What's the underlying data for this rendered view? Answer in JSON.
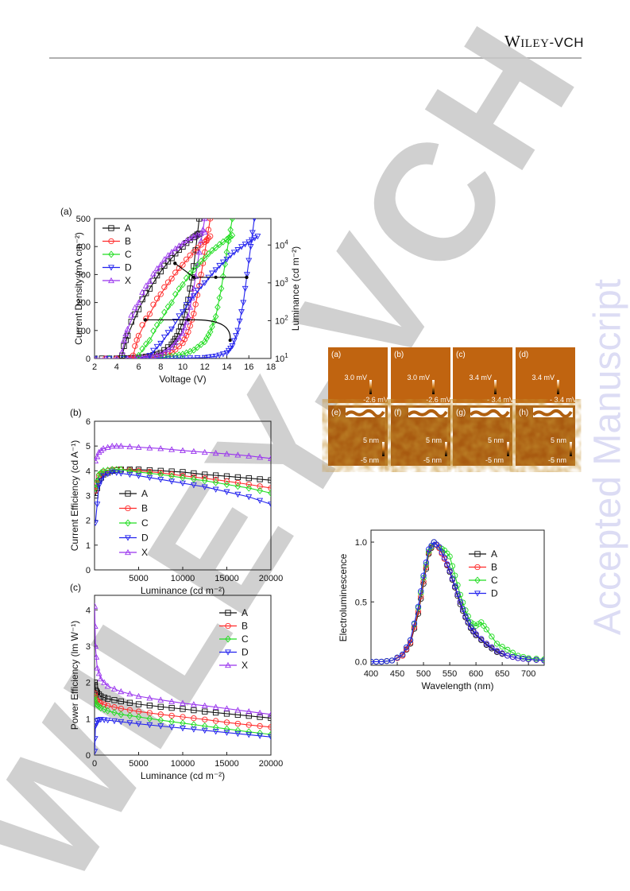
{
  "header": {
    "publisher_main": "Wiley",
    "publisher_sub": "-VCH"
  },
  "watermark": {
    "side_text": "Accepted Manuscript",
    "diagonal_text": "WILEY-VCH"
  },
  "colors": {
    "A": "#111111",
    "B": "#ff2a2a",
    "C": "#22dd22",
    "D": "#2222ee",
    "X": "#9933ee"
  },
  "chart_data": [
    {
      "id": "jvl",
      "type": "line",
      "panel_label": "(a)",
      "xlabel": "Voltage (V)",
      "ylabel": "Current Density (mA cm⁻²)",
      "y2label": "Luminance (cd m⁻²)",
      "xlim": [
        2,
        18
      ],
      "ylim": [
        0,
        500
      ],
      "y2lim": [
        10,
        50000
      ],
      "y2scale": "log",
      "xticks": [
        "2",
        "4",
        "6",
        "8",
        "10",
        "12",
        "14",
        "16",
        "18"
      ],
      "yticks": [
        "0",
        "100",
        "200",
        "300",
        "400",
        "500"
      ],
      "y2ticks": [
        "10",
        "10",
        "10",
        "10"
      ],
      "y2tick_exps": [
        "1",
        "2",
        "3",
        "4"
      ],
      "legend": [
        "A",
        "B",
        "C",
        "D",
        "X"
      ],
      "legend_position": "top-left",
      "series_j": [
        {
          "name": "A",
          "x": [
            2,
            4,
            5,
            6,
            7,
            8,
            9,
            9.5,
            10,
            10.5,
            11,
            11.5
          ],
          "y": [
            0,
            0,
            1,
            3,
            8,
            20,
            50,
            80,
            130,
            210,
            330,
            500
          ]
        },
        {
          "name": "B",
          "x": [
            2,
            5,
            6,
            7,
            8,
            9,
            10,
            10.5,
            11,
            11.5,
            12,
            12.5
          ],
          "y": [
            0,
            0,
            1,
            3,
            8,
            20,
            55,
            95,
            160,
            260,
            380,
            500
          ]
        },
        {
          "name": "C",
          "x": [
            2,
            6,
            7,
            8,
            9,
            10,
            11,
            12,
            12.5,
            13,
            13.5,
            14,
            14.5
          ],
          "y": [
            0,
            0,
            1,
            3,
            7,
            15,
            30,
            60,
            95,
            150,
            250,
            380,
            500
          ]
        },
        {
          "name": "D",
          "x": [
            2,
            6,
            8,
            10,
            12,
            13,
            14,
            14.5,
            15,
            15.5,
            16,
            16.5
          ],
          "y": [
            0,
            0,
            0.5,
            1,
            3,
            8,
            20,
            45,
            100,
            200,
            350,
            500
          ]
        },
        {
          "name": "X",
          "x": [
            2,
            5,
            6,
            7,
            8,
            9,
            10,
            10.5,
            11,
            11.5,
            12
          ],
          "y": [
            0,
            0,
            2,
            6,
            15,
            40,
            90,
            150,
            250,
            380,
            500
          ]
        }
      ],
      "series_l": [
        {
          "name": "A",
          "x": [
            4.5,
            5,
            6,
            7,
            8,
            9,
            10,
            11,
            11.5
          ],
          "y": [
            12,
            40,
            200,
            700,
            2000,
            4500,
            9000,
            16000,
            20000
          ]
        },
        {
          "name": "B",
          "x": [
            5.5,
            6,
            7,
            8,
            9,
            10,
            11,
            12,
            12.5
          ],
          "y": [
            12,
            40,
            150,
            500,
            1300,
            3000,
            6500,
            12000,
            17000
          ]
        },
        {
          "name": "C",
          "x": [
            6,
            7,
            8,
            9,
            10,
            11,
            12,
            13,
            14,
            14.5
          ],
          "y": [
            12,
            30,
            100,
            300,
            900,
            2200,
            4500,
            8500,
            14000,
            18000
          ]
        },
        {
          "name": "D",
          "x": [
            7,
            8,
            9,
            10,
            11,
            12,
            13,
            14,
            15,
            16,
            16.8
          ],
          "y": [
            12,
            25,
            60,
            170,
            450,
            1000,
            2200,
            4200,
            7500,
            12000,
            17000
          ]
        },
        {
          "name": "X",
          "x": [
            4.5,
            5,
            6,
            7,
            8,
            9,
            10,
            11,
            12
          ],
          "y": [
            15,
            60,
            300,
            1100,
            3000,
            6500,
            11000,
            17000,
            22000
          ]
        }
      ]
    },
    {
      "id": "ce",
      "type": "line",
      "panel_label": "(b)",
      "xlabel": "Luminance (cd m⁻²)",
      "ylabel": "Current Efficiency (cd A⁻¹)",
      "xlim": [
        0,
        20000
      ],
      "ylim": [
        0,
        6
      ],
      "xticks": [
        "5000",
        "10000",
        "15000",
        "20000"
      ],
      "yticks": [
        "0",
        "1",
        "2",
        "3",
        "4",
        "5",
        "6"
      ],
      "legend": [
        "A",
        "B",
        "C",
        "D",
        "X"
      ],
      "legend_position": "middle-left",
      "series": [
        {
          "name": "A",
          "x": [
            100,
            500,
            1000,
            2000,
            3000,
            5000,
            7500,
            10000,
            12500,
            15000,
            17500,
            20000
          ],
          "y": [
            3.0,
            3.6,
            3.85,
            4.0,
            4.05,
            4.05,
            4.0,
            3.95,
            3.85,
            3.78,
            3.7,
            3.62
          ]
        },
        {
          "name": "B",
          "x": [
            100,
            500,
            1000,
            2000,
            3000,
            5000,
            7500,
            10000,
            12500,
            15000,
            17500,
            20000
          ],
          "y": [
            3.2,
            3.8,
            3.95,
            4.05,
            4.05,
            4.0,
            3.92,
            3.8,
            3.7,
            3.58,
            3.45,
            3.3
          ]
        },
        {
          "name": "C",
          "x": [
            100,
            500,
            1000,
            2000,
            3000,
            5000,
            7500,
            10000,
            12500,
            15000,
            17500,
            20000
          ],
          "y": [
            3.3,
            3.85,
            4.0,
            4.05,
            4.05,
            3.95,
            3.85,
            3.72,
            3.6,
            3.45,
            3.3,
            3.1
          ]
        },
        {
          "name": "D",
          "x": [
            100,
            500,
            1000,
            2000,
            3000,
            5000,
            7500,
            10000,
            12500,
            15000,
            17500,
            20000
          ],
          "y": [
            1.9,
            3.4,
            3.8,
            3.95,
            3.9,
            3.8,
            3.65,
            3.5,
            3.35,
            3.15,
            2.95,
            2.65
          ]
        },
        {
          "name": "X",
          "x": [
            100,
            500,
            1000,
            2000,
            3000,
            5000,
            7500,
            10000,
            12500,
            15000,
            17500,
            20000
          ],
          "y": [
            4.4,
            4.75,
            4.9,
            5.0,
            5.0,
            4.95,
            4.9,
            4.82,
            4.75,
            4.68,
            4.6,
            4.5
          ]
        }
      ]
    },
    {
      "id": "pe",
      "type": "line",
      "panel_label": "(c)",
      "xlabel": "Luminance (cd m⁻²)",
      "ylabel": "Power Efficiency (lm W⁻¹)",
      "xlim": [
        0,
        20000
      ],
      "ylim": [
        0,
        4.4
      ],
      "xticks": [
        "0",
        "5000",
        "10000",
        "15000",
        "20000"
      ],
      "yticks": [
        "0",
        "1",
        "2",
        "3",
        "4"
      ],
      "legend": [
        "A",
        "B",
        "C",
        "D",
        "X"
      ],
      "legend_position": "top-right",
      "series": [
        {
          "name": "A",
          "x": [
            20,
            100,
            300,
            700,
            1500,
            3000,
            5000,
            7500,
            10000,
            12500,
            15000,
            17500,
            20000
          ],
          "y": [
            2.0,
            1.8,
            1.72,
            1.62,
            1.55,
            1.48,
            1.4,
            1.33,
            1.27,
            1.2,
            1.14,
            1.08,
            1.02
          ]
        },
        {
          "name": "B",
          "x": [
            20,
            100,
            300,
            700,
            1500,
            3000,
            5000,
            7500,
            10000,
            12500,
            15000,
            17500,
            20000
          ],
          "y": [
            1.7,
            1.55,
            1.5,
            1.43,
            1.36,
            1.28,
            1.2,
            1.12,
            1.05,
            0.98,
            0.9,
            0.83,
            0.77
          ]
        },
        {
          "name": "C",
          "x": [
            20,
            100,
            300,
            700,
            1500,
            3000,
            5000,
            7500,
            10000,
            12500,
            15000,
            17500,
            20000
          ],
          "y": [
            1.6,
            1.45,
            1.38,
            1.3,
            1.22,
            1.12,
            1.05,
            0.96,
            0.88,
            0.8,
            0.72,
            0.64,
            0.57
          ]
        },
        {
          "name": "D",
          "x": [
            20,
            100,
            300,
            700,
            1500,
            3000,
            5000,
            7500,
            10000,
            12500,
            15000,
            17500,
            20000
          ],
          "y": [
            0.1,
            0.8,
            0.95,
            0.98,
            0.96,
            0.92,
            0.86,
            0.8,
            0.74,
            0.68,
            0.62,
            0.56,
            0.5
          ]
        },
        {
          "name": "X",
          "x": [
            20,
            100,
            300,
            700,
            1500,
            3000,
            5000,
            7500,
            10000,
            12500,
            15000,
            17500,
            20000
          ],
          "y": [
            4.1,
            3.0,
            2.4,
            2.1,
            1.9,
            1.75,
            1.62,
            1.52,
            1.43,
            1.36,
            1.28,
            1.2,
            1.12
          ]
        }
      ]
    },
    {
      "id": "el",
      "type": "line",
      "xlabel": "Wavelength (nm)",
      "ylabel": "Electroluminescence",
      "xlim": [
        400,
        730
      ],
      "ylim": [
        -0.03,
        1.1
      ],
      "xticks": [
        "400",
        "450",
        "500",
        "550",
        "600",
        "650",
        "700"
      ],
      "yticks": [
        "0.0",
        "0.5",
        "1.0"
      ],
      "legend": [
        "A",
        "B",
        "C",
        "D"
      ],
      "legend_position": "top-right",
      "series": [
        {
          "name": "A",
          "x": [
            400,
            420,
            440,
            460,
            475,
            490,
            500,
            510,
            520,
            530,
            540,
            550,
            560,
            570,
            580,
            590,
            600,
            620,
            640,
            660,
            680,
            700,
            730
          ],
          "y": [
            0.0,
            0.0,
            0.01,
            0.05,
            0.15,
            0.4,
            0.65,
            0.9,
            1.0,
            0.95,
            0.86,
            0.75,
            0.62,
            0.48,
            0.37,
            0.28,
            0.22,
            0.14,
            0.08,
            0.05,
            0.03,
            0.02,
            0.01
          ]
        },
        {
          "name": "B",
          "x": [
            400,
            420,
            440,
            460,
            475,
            490,
            500,
            510,
            520,
            530,
            540,
            550,
            560,
            570,
            580,
            590,
            600,
            620,
            640,
            660,
            680,
            700,
            730
          ],
          "y": [
            0.0,
            0.0,
            0.01,
            0.05,
            0.16,
            0.42,
            0.67,
            0.91,
            1.0,
            0.95,
            0.86,
            0.76,
            0.63,
            0.5,
            0.38,
            0.29,
            0.23,
            0.15,
            0.09,
            0.05,
            0.03,
            0.02,
            0.01
          ]
        },
        {
          "name": "C",
          "x": [
            400,
            420,
            440,
            460,
            475,
            490,
            500,
            510,
            520,
            530,
            540,
            550,
            560,
            570,
            580,
            590,
            600,
            610,
            620,
            640,
            660,
            680,
            700,
            730
          ],
          "y": [
            0.0,
            0.0,
            0.01,
            0.06,
            0.18,
            0.45,
            0.7,
            0.92,
            1.0,
            0.96,
            0.93,
            0.88,
            0.72,
            0.56,
            0.43,
            0.33,
            0.3,
            0.33,
            0.27,
            0.15,
            0.1,
            0.05,
            0.03,
            0.02
          ]
        },
        {
          "name": "D",
          "x": [
            400,
            420,
            440,
            460,
            475,
            490,
            500,
            510,
            520,
            530,
            540,
            550,
            560,
            570,
            580,
            590,
            600,
            620,
            640,
            660,
            680,
            700,
            730
          ],
          "y": [
            0.0,
            0.0,
            0.01,
            0.06,
            0.18,
            0.46,
            0.72,
            0.94,
            1.0,
            0.96,
            0.87,
            0.76,
            0.63,
            0.5,
            0.38,
            0.29,
            0.23,
            0.15,
            0.09,
            0.05,
            0.03,
            0.02,
            0.01
          ]
        }
      ]
    }
  ],
  "afm": {
    "top": [
      {
        "label": "(a)",
        "max": "3.0 mV",
        "min": "-2.6 mV"
      },
      {
        "label": "(b)",
        "max": "3.0 mV",
        "min": "-2.6 mV"
      },
      {
        "label": "(c)",
        "max": "3.4 mV",
        "min": "- 3.4 mV"
      },
      {
        "label": "(d)",
        "max": "3.4 mV",
        "min": "- 3.4 mV"
      }
    ],
    "bottom": [
      {
        "label": "(e)",
        "max": "5 nm",
        "min": "-5 nm"
      },
      {
        "label": "(f)",
        "max": "5 nm",
        "min": "-5 nm"
      },
      {
        "label": "(g)",
        "max": "5 nm",
        "min": "-5 nm"
      },
      {
        "label": "(h)",
        "max": "5 nm",
        "min": "-5 nm"
      }
    ]
  }
}
